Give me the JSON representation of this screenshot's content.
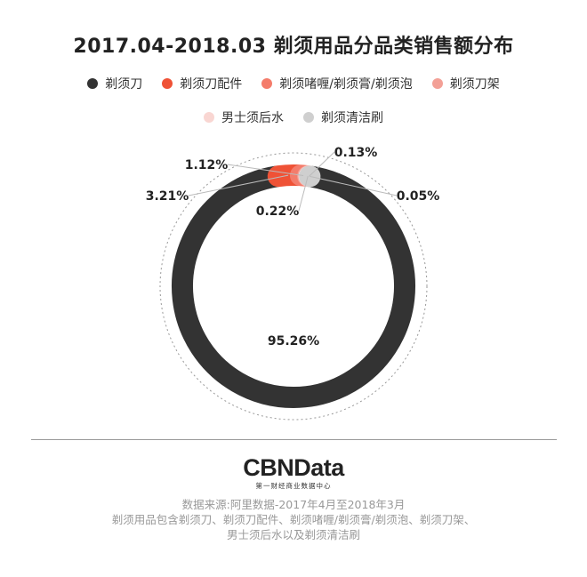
{
  "chart_data": {
    "type": "pie",
    "style": "donut",
    "title": "2017.04-2018.03 剃须用品分品类销售额分布",
    "legend_position": "top",
    "series": [
      {
        "name": "剃须刀",
        "value": 95.26,
        "label": "95.26%",
        "color": "#333333"
      },
      {
        "name": "剃须刀配件",
        "value": 3.21,
        "label": "3.21%",
        "color": "#ef5236"
      },
      {
        "name": "剃须啫喱/剃须膏/剃须泡",
        "value": 1.12,
        "label": "1.12%",
        "color": "#f47c6b"
      },
      {
        "name": "剃须刀架",
        "value": 0.22,
        "label": "0.22%",
        "color": "#f3a096"
      },
      {
        "name": "男士须后水",
        "value": 0.13,
        "label": "0.13%",
        "color": "#f9d6d2"
      },
      {
        "name": "剃须清洁刷",
        "value": 0.05,
        "label": "0.05%",
        "color": "#cfcfcf"
      }
    ]
  },
  "footer": {
    "brand": "CBNData",
    "brand_sub": "第一财经商业数据中心",
    "source_lines": [
      "数据来源:阿里数据-2017年4月至2018年3月",
      "剃须用品包含剃须刀、剃须刀配件、剃须啫喱/剃须膏/剃须泡、剃须刀架、",
      "男士须后水以及剃须清洁刷"
    ]
  }
}
